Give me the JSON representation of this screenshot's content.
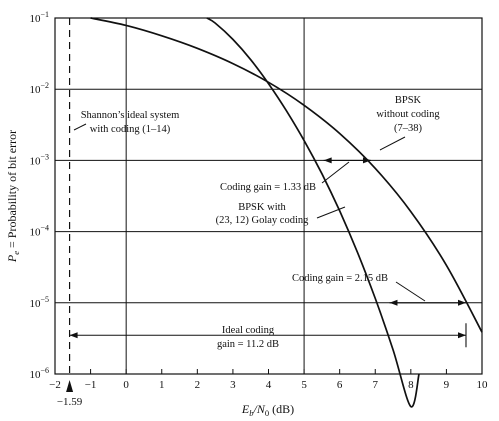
{
  "chart_data": {
    "type": "line",
    "title": "",
    "xlabel": "E",
    "xlabel_sub": "b",
    "xlabel_mid": "/N",
    "xlabel_sub2": "0",
    "xlabel_unit": " (dB)",
    "ylabel": "P",
    "ylabel_sub": "e",
    "ylabel_rest": " = Probability of bit error",
    "xlim": [
      -2,
      10
    ],
    "ylim_exp": [
      -6,
      -1
    ],
    "log_y": true,
    "grid": true,
    "x_ticks": [
      -2,
      -1,
      0,
      1,
      2,
      3,
      4,
      5,
      6,
      7,
      8,
      9,
      10
    ],
    "x_tick_labels": [
      "−2",
      "−1",
      "0",
      "1",
      "2",
      "3",
      "4",
      "5",
      "6",
      "7",
      "8",
      "9",
      "10"
    ],
    "x_grid_major": [
      0,
      5,
      10
    ],
    "y_exponents": [
      -1,
      -2,
      -3,
      -4,
      -5,
      -6
    ],
    "y_tick_base": "10",
    "y_tick_exps": [
      "−1",
      "−2",
      "−3",
      "−4",
      "−5",
      "−6"
    ],
    "shannon_limit": {
      "x": -1.59,
      "label": "−1.59"
    },
    "series": [
      {
        "name": "BPSK without coding",
        "points": [
          [
            -1.0,
            0.1
          ],
          [
            0,
            0.0786
          ],
          [
            1,
            0.0563
          ],
          [
            2,
            0.0375
          ],
          [
            3,
            0.0229
          ],
          [
            4,
            0.0125
          ],
          [
            5,
            0.00595
          ],
          [
            6,
            0.00239
          ],
          [
            7,
            0.000773
          ],
          [
            8,
            0.000191
          ],
          [
            9,
            3.36e-05
          ],
          [
            10,
            3.87e-06
          ]
        ]
      },
      {
        "name": "BPSK with (23,12) Golay coding",
        "points": [
          [
            2.27,
            0.1
          ],
          [
            2.5,
            0.085
          ],
          [
            3,
            0.05
          ],
          [
            3.5,
            0.026
          ],
          [
            4,
            0.012
          ],
          [
            4.5,
            0.005
          ],
          [
            5,
            0.0019
          ],
          [
            5.5,
            0.00065
          ],
          [
            6,
            0.000195
          ],
          [
            6.5,
            5.1e-05
          ],
          [
            7,
            1.15e-05
          ],
          [
            7.5,
            2.2e-06
          ],
          [
            8,
            3.5e-07
          ],
          [
            8.23,
            1e-06
          ]
        ]
      }
    ],
    "annotations": {
      "shannon": [
        "Shannon’s ideal system",
        "with coding (1–14)"
      ],
      "bpsk_uncoded": [
        "BPSK",
        "without coding",
        "(7–38)"
      ],
      "coding_gain_1": "Coding gain = 1.33 dB",
      "golay": [
        "BPSK with",
        "(23, 12) Golay coding"
      ],
      "coding_gain_2": "Coding gain = 2.15 dB",
      "ideal_gain": [
        "Ideal coding",
        "gain = 11.2 dB"
      ]
    },
    "gain_markers": [
      {
        "name": "coding-gain-1-arrow",
        "y": 0.001,
        "x1": 5.55,
        "x2": 6.88
      },
      {
        "name": "coding-gain-2-arrow",
        "y": 1e-05,
        "x1": 7.4,
        "x2": 9.55
      },
      {
        "name": "ideal-gain-arrow",
        "y": 3.5e-06,
        "x1": -1.59,
        "x2": 9.55
      }
    ]
  }
}
